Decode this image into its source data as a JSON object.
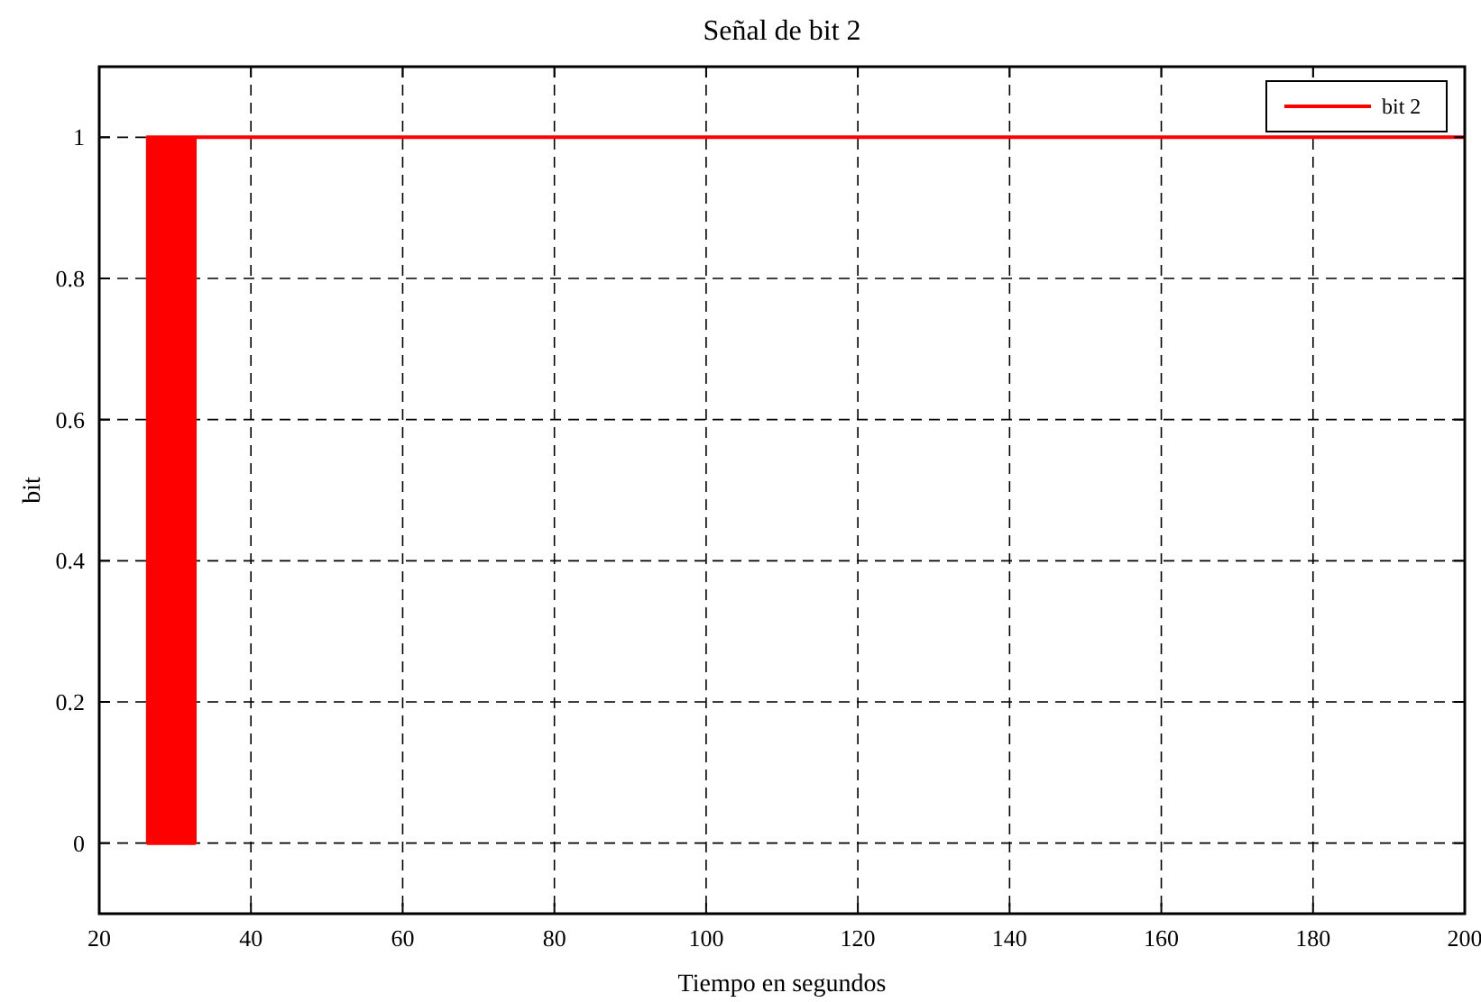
{
  "chart_data": {
    "type": "step",
    "title": "Señal de bit 2",
    "xlabel": "Tiempo en segundos",
    "ylabel": "bit",
    "xlim": [
      20,
      200
    ],
    "xticks": [
      20,
      40,
      60,
      80,
      100,
      120,
      140,
      160,
      180,
      200
    ],
    "ylim": [
      -0.1,
      1.1
    ],
    "yticks": [
      0,
      0.2,
      0.4,
      0.6,
      0.8,
      1
    ],
    "grid": true,
    "legend": "top right",
    "series": [
      {
        "name": "bit 2",
        "color": "#ff0000",
        "x": [
          26.2,
          26.4,
          26.6,
          26.8,
          27,
          27.2,
          27.4,
          27.6,
          27.8,
          28,
          28.2,
          28.4,
          28.6,
          28.8,
          29,
          29.2,
          29.4,
          29.6,
          29.8,
          30,
          30.2,
          30.4,
          30.6,
          30.8,
          31,
          31.2,
          31.4,
          31.6,
          31.8,
          32,
          32.2,
          32.4,
          32.6,
          200
        ],
        "values": [
          1,
          0,
          1,
          0,
          1,
          0,
          1,
          0,
          1,
          0,
          1,
          0,
          1,
          0,
          1,
          0,
          1,
          0,
          1,
          0,
          1,
          0,
          1,
          0,
          1,
          0,
          1,
          0,
          1,
          0,
          1,
          0,
          1,
          1
        ]
      }
    ]
  }
}
